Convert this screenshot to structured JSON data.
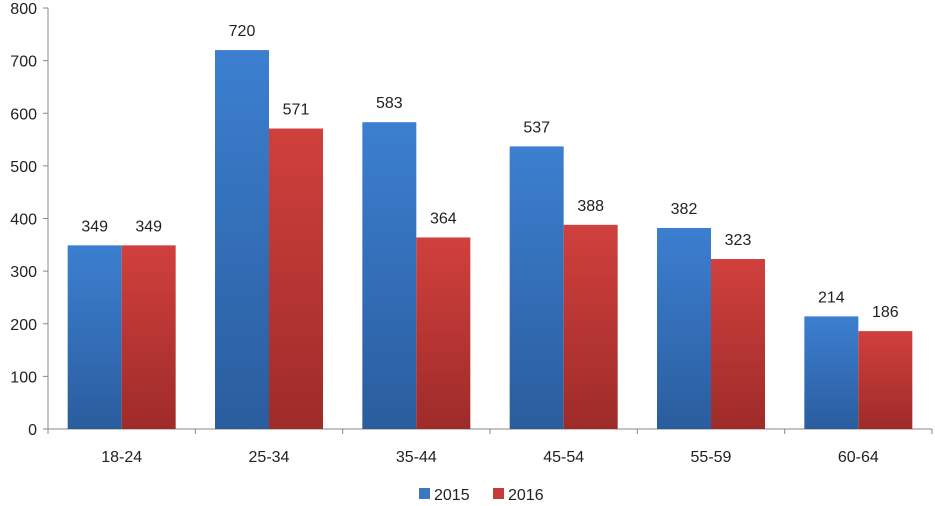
{
  "chart_data": {
    "type": "bar",
    "categories": [
      "18-24",
      "25-34",
      "35-44",
      "45-54",
      "55-59",
      "60-64"
    ],
    "series": [
      {
        "name": "2015",
        "values": [
          349,
          720,
          583,
          537,
          382,
          214
        ],
        "color": "#3a78c4"
      },
      {
        "name": "2016",
        "values": [
          349,
          571,
          364,
          388,
          323,
          186
        ],
        "color": "#c83a38"
      }
    ],
    "ylim": [
      0,
      800
    ],
    "yticks": [
      0,
      100,
      200,
      300,
      400,
      500,
      600,
      700,
      800
    ],
    "grid": false,
    "legend": "bottom-center"
  }
}
